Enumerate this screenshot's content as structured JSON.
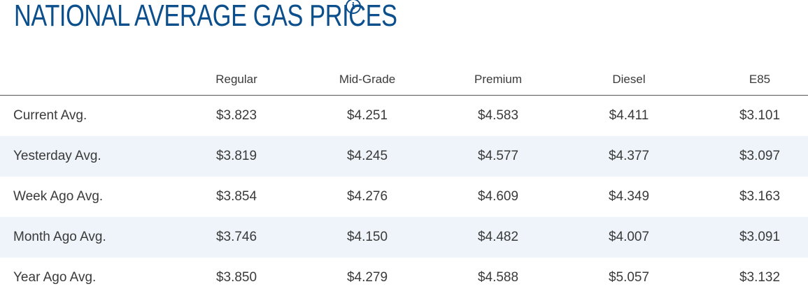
{
  "title": "NATIONAL AVERAGE GAS PRICES",
  "info_icon": "info-icon",
  "accent_color": "#0b4f8c",
  "stripe_color": "#eef4f9",
  "columns": [
    "Regular",
    "Mid-Grade",
    "Premium",
    "Diesel",
    "E85"
  ],
  "rows": [
    {
      "label": "Current Avg.",
      "values": [
        "$3.823",
        "$4.251",
        "$4.583",
        "$4.411",
        "$3.101"
      ]
    },
    {
      "label": "Yesterday Avg.",
      "values": [
        "$3.819",
        "$4.245",
        "$4.577",
        "$4.377",
        "$3.097"
      ]
    },
    {
      "label": "Week Ago Avg.",
      "values": [
        "$3.854",
        "$4.276",
        "$4.609",
        "$4.349",
        "$3.163"
      ]
    },
    {
      "label": "Month Ago Avg.",
      "values": [
        "$3.746",
        "$4.150",
        "$4.482",
        "$4.007",
        "$3.091"
      ]
    },
    {
      "label": "Year Ago Avg.",
      "values": [
        "$3.850",
        "$4.279",
        "$4.588",
        "$5.057",
        "$3.132"
      ]
    }
  ]
}
